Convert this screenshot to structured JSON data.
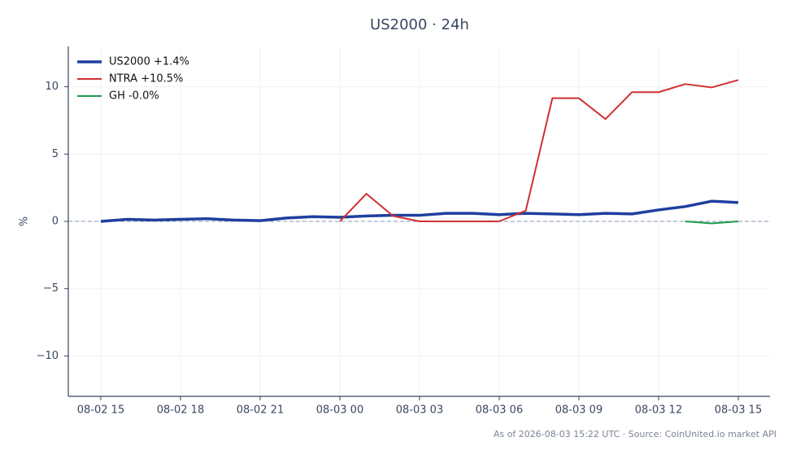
{
  "chart_data": {
    "type": "line",
    "title": "US2000 · 24h",
    "ylabel": "%",
    "footer": "As of 2026-08-03 15:22 UTC · Source: CoinUnited.io market API",
    "categories": [
      "08-02 15",
      null,
      null,
      "08-02 18",
      null,
      null,
      "08-02 21",
      null,
      null,
      "08-03 00",
      null,
      null,
      "08-03 03",
      null,
      null,
      "08-03 06",
      null,
      null,
      "08-03 09",
      null,
      null,
      "08-03 12",
      null,
      null,
      "08-03 15"
    ],
    "series": [
      {
        "name": "US2000 +1.4%",
        "color": "#1f3f9f",
        "width": 3.5,
        "values": [
          0.0,
          0.15,
          0.1,
          0.15,
          0.2,
          0.1,
          0.05,
          0.25,
          0.35,
          0.3,
          0.4,
          0.45,
          0.45,
          0.6,
          0.6,
          0.5,
          0.6,
          0.55,
          0.5,
          0.6,
          0.55,
          0.85,
          1.1,
          1.5,
          1.4
        ]
      },
      {
        "name": "NTRA +10.5%",
        "color": "#d03030",
        "width": 2,
        "values": [
          null,
          null,
          null,
          null,
          null,
          null,
          null,
          null,
          null,
          0.0,
          2.05,
          0.4,
          0.0,
          0.0,
          0.0,
          0.0,
          0.8,
          9.15,
          9.15,
          7.6,
          9.6,
          9.6,
          10.2,
          9.95,
          10.5
        ]
      },
      {
        "name": "GH -0.0%",
        "color": "#1a9a4a",
        "width": 2,
        "values": [
          null,
          null,
          null,
          null,
          null,
          null,
          null,
          null,
          null,
          null,
          null,
          null,
          null,
          null,
          null,
          null,
          null,
          null,
          null,
          null,
          null,
          null,
          0.0,
          -0.15,
          0.0
        ]
      }
    ],
    "ylim": [
      -13,
      13
    ],
    "yticks": [
      {
        "value": -10,
        "label": "−10"
      },
      {
        "value": -5,
        "label": "−5"
      },
      0,
      5,
      10
    ],
    "hline": 0,
    "grid": true,
    "legend": "upper-left"
  }
}
